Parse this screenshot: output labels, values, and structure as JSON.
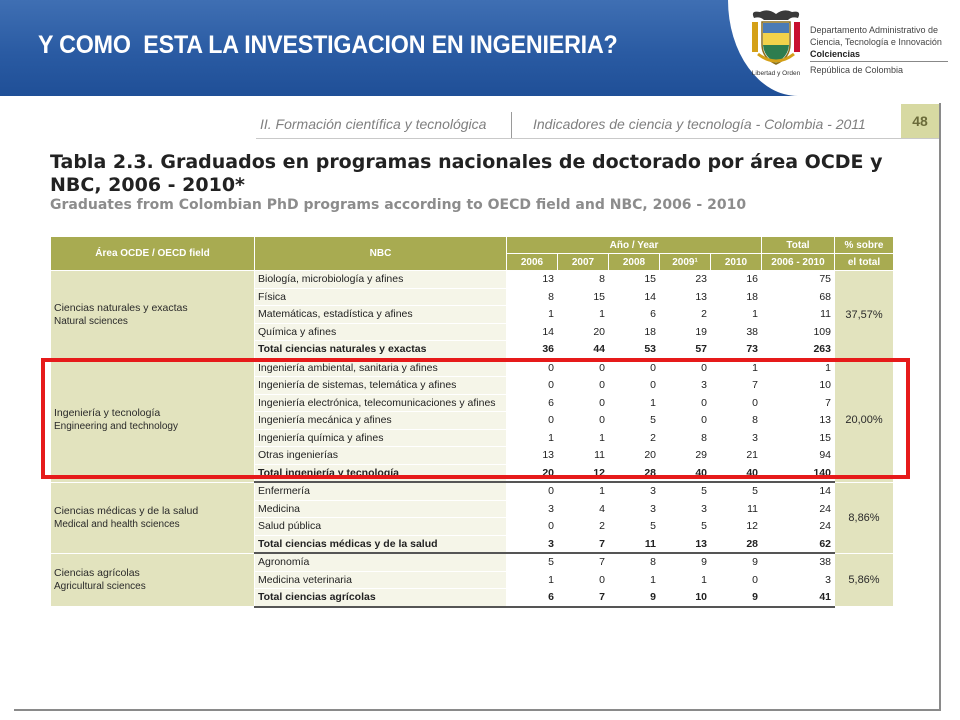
{
  "slide": {
    "title": "Y COMO  ESTA LA INVESTIGACION EN INGENIERIA?"
  },
  "logo": {
    "motto": "Libertad y Orden",
    "lines": [
      "Departamento Administrativo de",
      "Ciencia, Tecnología e Innovación",
      "Colciencias",
      "República de Colombia"
    ]
  },
  "header": {
    "left": "II. Formación científica y tecnológica",
    "right": "Indicadores de ciencia y tecnología - Colombia - 2011",
    "page": "48"
  },
  "table": {
    "title": "Tabla 2.3. Graduados en programas nacionales de doctorado por área OCDE y NBC, 2006 - 2010*",
    "subtitle": "Graduates from Colombian PhD programs according to OECD field and NBC, 2006 - 2010",
    "headers": {
      "area": "Área OCDE / OECD field",
      "nbc": "NBC",
      "year_group": "Año / Year",
      "years": [
        "2006",
        "2007",
        "2008",
        "2009¹",
        "2010"
      ],
      "total": "Total",
      "total_range": "2006 - 2010",
      "pct_line1": "% sobre",
      "pct_line2": "el total"
    },
    "groups": [
      {
        "area_es": "Ciencias naturales y exactas",
        "area_en": "Natural sciences",
        "pct": "37,57%",
        "rows": [
          {
            "nbc": "Biología, microbiología y afines",
            "values": [
              "13",
              "8",
              "15",
              "23",
              "16"
            ],
            "total": "75"
          },
          {
            "nbc": "Física",
            "values": [
              "8",
              "15",
              "14",
              "13",
              "18"
            ],
            "total": "68"
          },
          {
            "nbc": "Matemáticas, estadística y afines",
            "values": [
              "1",
              "1",
              "6",
              "2",
              "1"
            ],
            "total": "11"
          },
          {
            "nbc": "Química y afines",
            "values": [
              "14",
              "20",
              "18",
              "19",
              "38"
            ],
            "total": "109"
          },
          {
            "nbc": "Total ciencias naturales y exactas",
            "values": [
              "36",
              "44",
              "53",
              "57",
              "73"
            ],
            "total": "263",
            "is_total": true
          }
        ]
      },
      {
        "area_es": "Ingeniería y tecnología",
        "area_en": "Engineering and technology",
        "pct": "20,00%",
        "rows": [
          {
            "nbc": "Ingeniería ambiental, sanitaria y afines",
            "values": [
              "0",
              "0",
              "0",
              "0",
              "1"
            ],
            "total": "1"
          },
          {
            "nbc": "Ingeniería de sistemas, telemática y afines",
            "values": [
              "0",
              "0",
              "0",
              "3",
              "7"
            ],
            "total": "10"
          },
          {
            "nbc": "Ingeniería electrónica, telecomunicaciones y afines",
            "values": [
              "6",
              "0",
              "1",
              "0",
              "0"
            ],
            "total": "7"
          },
          {
            "nbc": "Ingeniería mecánica y afines",
            "values": [
              "0",
              "0",
              "5",
              "0",
              "8"
            ],
            "total": "13"
          },
          {
            "nbc": "Ingeniería química y afines",
            "values": [
              "1",
              "1",
              "2",
              "8",
              "3"
            ],
            "total": "15"
          },
          {
            "nbc": "Otras ingenierías",
            "values": [
              "13",
              "11",
              "20",
              "29",
              "21"
            ],
            "total": "94"
          },
          {
            "nbc": "Total ingeniería y tecnología",
            "values": [
              "20",
              "12",
              "28",
              "40",
              "40"
            ],
            "total": "140",
            "is_total": true
          }
        ]
      },
      {
        "area_es": "Ciencias médicas y de la salud",
        "area_en": "Medical and health sciences",
        "pct": "8,86%",
        "rows": [
          {
            "nbc": "Enfermería",
            "values": [
              "0",
              "1",
              "3",
              "5",
              "5"
            ],
            "total": "14"
          },
          {
            "nbc": "Medicina",
            "values": [
              "3",
              "4",
              "3",
              "3",
              "11"
            ],
            "total": "24"
          },
          {
            "nbc": "Salud pública",
            "values": [
              "0",
              "2",
              "5",
              "5",
              "12"
            ],
            "total": "24"
          },
          {
            "nbc": "Total ciencias médicas y de la salud",
            "values": [
              "3",
              "7",
              "11",
              "13",
              "28"
            ],
            "total": "62",
            "is_total": true
          }
        ]
      },
      {
        "area_es": "Ciencias agrícolas",
        "area_en": "Agricultural sciences",
        "pct": "5,86%",
        "rows": [
          {
            "nbc": "Agronomía",
            "values": [
              "5",
              "7",
              "8",
              "9",
              "9"
            ],
            "total": "38"
          },
          {
            "nbc": "Medicina veterinaria",
            "values": [
              "1",
              "0",
              "1",
              "1",
              "0"
            ],
            "total": "3"
          },
          {
            "nbc": "Total ciencias agrícolas",
            "values": [
              "6",
              "7",
              "9",
              "10",
              "9"
            ],
            "total": "41",
            "is_total": true
          }
        ]
      }
    ]
  },
  "colors": {
    "banner": "#2a5ba3",
    "header_fill": "#a8ab51",
    "area_fill": "#e2e3be",
    "highlight": "#e61a1a"
  },
  "highlight_target": "Ingeniería y tecnología"
}
